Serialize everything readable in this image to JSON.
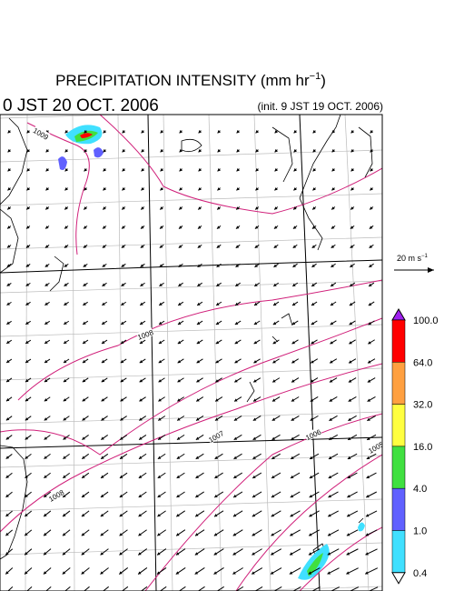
{
  "header": {
    "title": "PRECIPITATION INTENSITY (mm hr",
    "title_sup": "−1",
    "title_end": ")",
    "valid_time": "0 JST 20 OCT. 2006",
    "init_time": "(init. 9 JST 19 OCT. 2006)"
  },
  "wind_scale": {
    "label": "20 m s",
    "sup": "−1"
  },
  "colorbar": {
    "over_color": "#a020f0",
    "under_color": "#ffffff",
    "levels": [
      {
        "value": 100,
        "label": "100.0"
      },
      {
        "value": 64,
        "label": "64.0"
      },
      {
        "value": 32,
        "label": "32.0"
      },
      {
        "value": 16,
        "label": "16.0"
      },
      {
        "value": 4,
        "label": "4.0"
      },
      {
        "value": 1,
        "label": "1.0"
      },
      {
        "value": 0.4,
        "label": "0.4"
      }
    ],
    "colors": [
      "#ff0000",
      "#ffa040",
      "#ffff40",
      "#40e040",
      "#6060ff",
      "#40e0ff"
    ]
  },
  "isobar_labels": [
    "1009",
    "1008",
    "1007",
    "1006",
    "1005",
    "1008"
  ]
}
